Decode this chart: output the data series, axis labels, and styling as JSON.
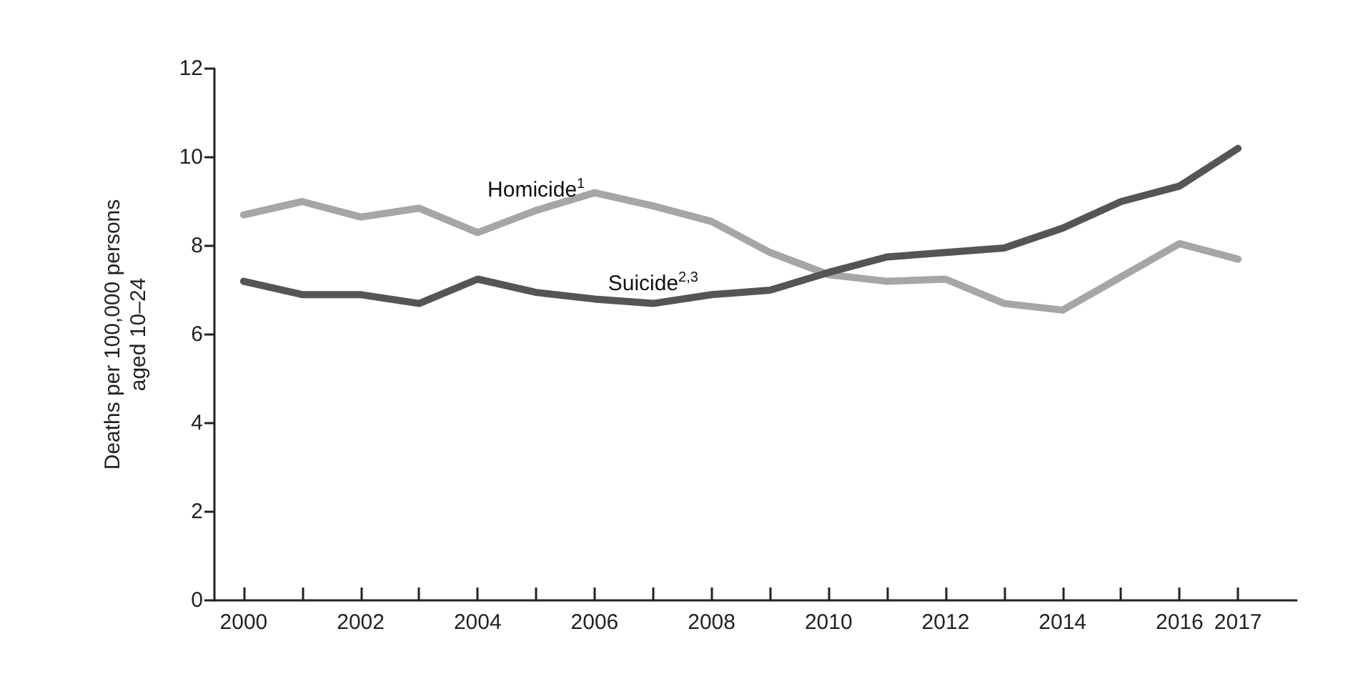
{
  "chart_data": {
    "type": "line",
    "ylabel": "Deaths per 100,000 persons\naged 10–24",
    "x": [
      2000,
      2001,
      2002,
      2003,
      2004,
      2005,
      2006,
      2007,
      2008,
      2009,
      2010,
      2011,
      2012,
      2013,
      2014,
      2015,
      2016,
      2017
    ],
    "series": [
      {
        "name": "Homicide$^{1}$",
        "color": "#a6a6a6",
        "values": [
          8.7,
          9.0,
          8.65,
          8.85,
          8.3,
          8.8,
          9.2,
          8.9,
          8.55,
          7.85,
          7.35,
          7.2,
          7.25,
          6.7,
          6.55,
          7.3,
          8.05,
          7.7
        ]
      },
      {
        "name": "Suicide$^{2,3}$",
        "color": "#555555",
        "values": [
          7.2,
          6.9,
          6.9,
          6.7,
          7.25,
          6.95,
          6.8,
          6.7,
          6.9,
          7.0,
          7.4,
          7.75,
          7.85,
          7.95,
          8.4,
          9.0,
          9.35,
          10.2
        ]
      }
    ],
    "xlim": [
      1999.5,
      2018
    ],
    "xticks": [
      2000,
      {
        "value": 2001,
        "label": null
      },
      2002,
      {
        "value": 2003,
        "label": null
      },
      2004,
      {
        "value": 2005,
        "label": null
      },
      2006,
      {
        "value": 2007,
        "label": null
      },
      2008,
      {
        "value": 2009,
        "label": null
      },
      2010,
      {
        "value": 2011,
        "label": null
      },
      2012,
      {
        "value": 2013,
        "label": null
      },
      2014,
      {
        "value": 2015,
        "label": null
      },
      2016,
      2017
    ],
    "ylim": [
      0,
      12
    ],
    "yticks": [
      0,
      2,
      4,
      6,
      8,
      10,
      12
    ],
    "grid": false,
    "legend": false,
    "marker": "none",
    "line_style": "solid"
  }
}
